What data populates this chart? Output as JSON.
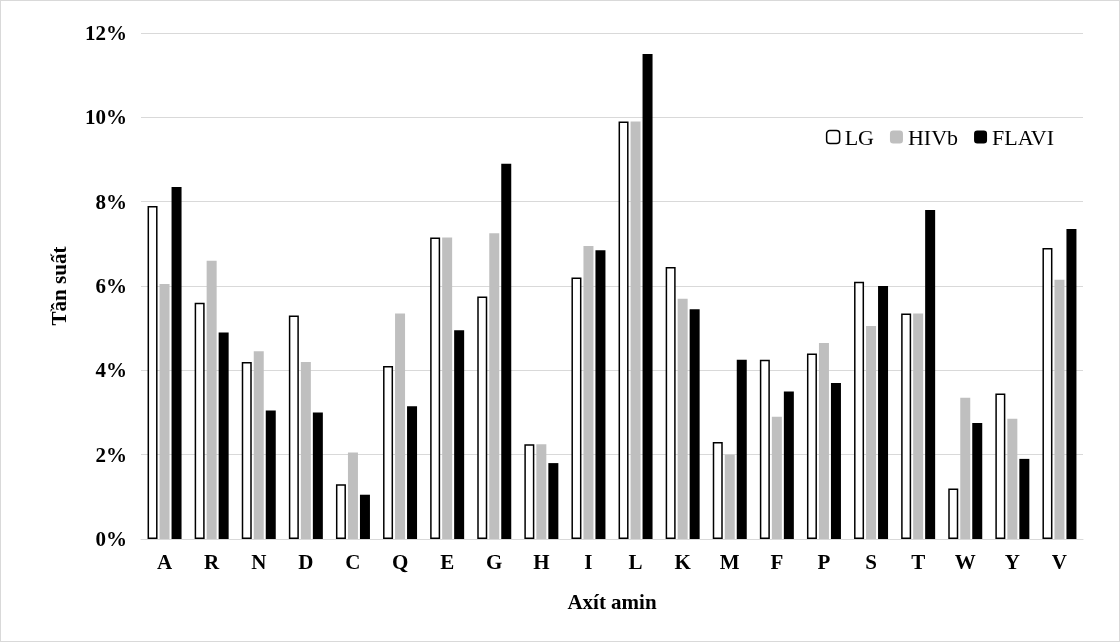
{
  "chart_data": {
    "type": "bar",
    "xlabel": "Axít amin",
    "ylabel": "Tần suất",
    "categories": [
      "A",
      "R",
      "N",
      "D",
      "C",
      "Q",
      "E",
      "G",
      "H",
      "I",
      "L",
      "K",
      "M",
      "F",
      "P",
      "S",
      "T",
      "W",
      "Y",
      "V"
    ],
    "series": [
      {
        "name": "LG",
        "color": "#ffffff",
        "values": [
          7.9,
          5.6,
          4.2,
          5.3,
          1.3,
          4.1,
          7.15,
          5.75,
          2.25,
          6.2,
          9.9,
          6.45,
          2.3,
          4.25,
          4.4,
          6.1,
          5.35,
          1.2,
          3.45,
          6.9
        ]
      },
      {
        "name": "HIVb",
        "color": "#bfbfbf",
        "values": [
          6.05,
          6.6,
          4.45,
          4.2,
          2.05,
          5.35,
          7.15,
          7.25,
          2.25,
          6.95,
          9.9,
          5.7,
          2.0,
          2.9,
          4.65,
          5.05,
          5.35,
          3.35,
          2.85,
          6.15
        ]
      },
      {
        "name": "FLAVI",
        "color": "#000000",
        "values": [
          8.35,
          4.9,
          3.05,
          3.0,
          1.05,
          3.15,
          4.95,
          8.9,
          1.8,
          6.85,
          11.5,
          5.45,
          4.25,
          3.5,
          3.7,
          6.0,
          7.8,
          2.75,
          1.9,
          7.35
        ]
      }
    ],
    "ylim": [
      0,
      12
    ],
    "yticks": [
      {
        "value": 0,
        "label": "0%"
      },
      {
        "value": 2,
        "label": "2%"
      },
      {
        "value": 4,
        "label": "4%"
      },
      {
        "value": 6,
        "label": "6%"
      },
      {
        "value": 8,
        "label": "8%"
      },
      {
        "value": 10,
        "label": "10%"
      },
      {
        "value": 12,
        "label": "12%"
      }
    ],
    "grid": "y",
    "legend": "top right"
  }
}
